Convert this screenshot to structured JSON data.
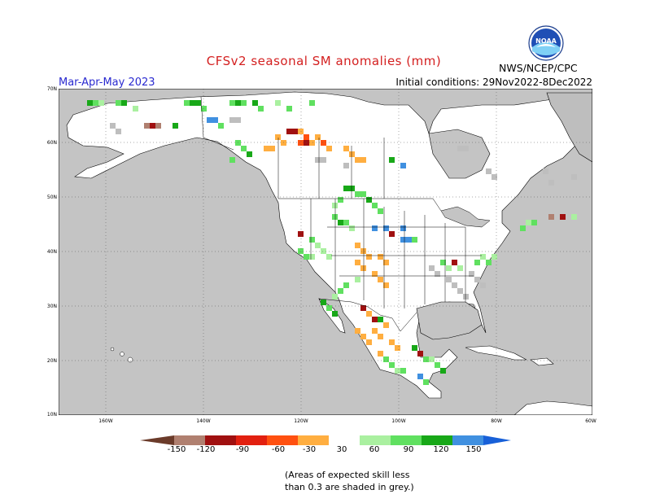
{
  "header": {
    "title": "CFSv2 seasonal SM anomalies (mm)",
    "season": "Mar-Apr-May 2023",
    "initial_conditions": "Initial conditions: 29Nov2022-8Dec2022",
    "agency": "NWS/NCEP/CPC",
    "logo_text": "NOAA"
  },
  "map": {
    "lat_labels": [
      "70N",
      "60N",
      "50N",
      "40N",
      "30N",
      "20N",
      "10N"
    ],
    "lon_labels": [
      "160W",
      "140W",
      "120W",
      "100W",
      "80W",
      "60W"
    ],
    "colors": {
      "ocean": "#c4c4c4",
      "land": "#ffffff",
      "low_skill": "#bebebe",
      "border": "#000000"
    }
  },
  "colorbar": {
    "labels": [
      "-150",
      "-120",
      "-90",
      "-60",
      "-30",
      "30",
      "60",
      "90",
      "120",
      "150"
    ],
    "colors": [
      "#6b3b2a",
      "#b08070",
      "#a01010",
      "#e22010",
      "#ff5010",
      "#ffae40",
      "#ffffff",
      "#aaf0a0",
      "#60e060",
      "#18a818",
      "#4090e0",
      "#1860d8"
    ]
  },
  "footnote": {
    "line1": "(Areas of expected skill less",
    "line2": "than 0.3 are shaded in grey.)"
  }
}
